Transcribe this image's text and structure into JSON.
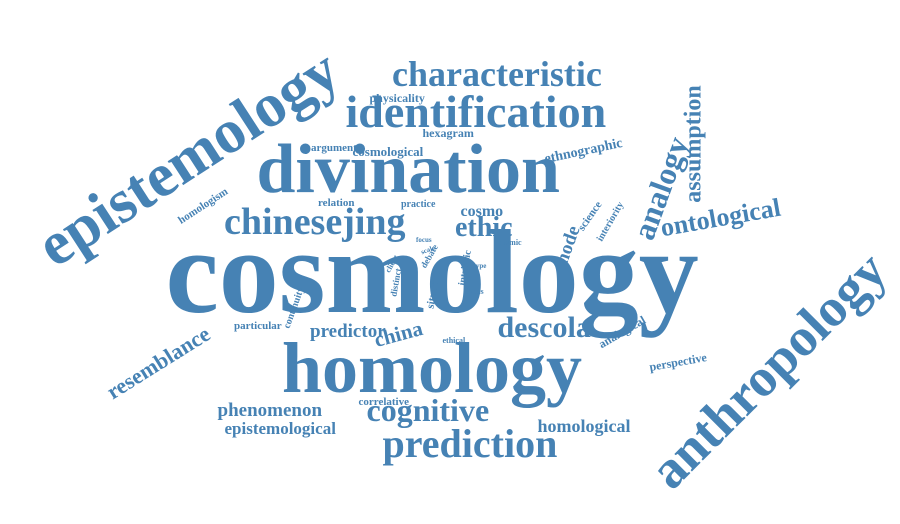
{
  "accent_color": "#4682b4",
  "words": [
    {
      "text": "cosmology",
      "weight": 1.0
    },
    {
      "text": "epistemology",
      "weight": 0.5
    },
    {
      "text": "anthropology",
      "weight": 0.46
    },
    {
      "text": "divination",
      "weight": 0.56
    },
    {
      "text": "homology",
      "weight": 0.58
    },
    {
      "text": "identification",
      "weight": 0.38
    },
    {
      "text": "characteristic",
      "weight": 0.28
    },
    {
      "text": "chinesejing",
      "weight": 0.3
    },
    {
      "text": "prediction",
      "weight": 0.3
    },
    {
      "text": "cognitive",
      "weight": 0.24
    },
    {
      "text": "analogy",
      "weight": 0.22
    },
    {
      "text": "assumption",
      "weight": 0.2
    },
    {
      "text": "ontological",
      "weight": 0.18
    },
    {
      "text": "descola",
      "weight": 0.2
    },
    {
      "text": "resemblance",
      "weight": 0.16
    },
    {
      "text": "ethic",
      "weight": 0.17
    },
    {
      "text": "mode",
      "weight": 0.12
    },
    {
      "text": "china",
      "weight": 0.14
    },
    {
      "text": "predictor",
      "weight": 0.13
    },
    {
      "text": "phenomenon",
      "weight": 0.13
    },
    {
      "text": "epistemological",
      "weight": 0.12
    },
    {
      "text": "homological",
      "weight": 0.12
    },
    {
      "text": "ethnographic",
      "weight": 0.09
    },
    {
      "text": "cosmo",
      "weight": 0.09
    },
    {
      "text": "perspective",
      "weight": 0.08
    },
    {
      "text": "analogical",
      "weight": 0.08
    },
    {
      "text": "cosmological",
      "weight": 0.08
    },
    {
      "text": "physicality",
      "weight": 0.07
    },
    {
      "text": "hexagram",
      "weight": 0.07
    },
    {
      "text": "argument",
      "weight": 0.07
    },
    {
      "text": "relation",
      "weight": 0.07
    },
    {
      "text": "practice",
      "weight": 0.06
    },
    {
      "text": "homologism",
      "weight": 0.06
    },
    {
      "text": "science",
      "weight": 0.06
    },
    {
      "text": "interiority",
      "weight": 0.06
    },
    {
      "text": "particular",
      "weight": 0.07
    },
    {
      "text": "continuity",
      "weight": 0.06
    },
    {
      "text": "correlative",
      "weight": 0.06
    },
    {
      "text": "situation",
      "weight": 0.06
    },
    {
      "text": "debate",
      "weight": 0.05
    },
    {
      "text": "intrinsic",
      "weight": 0.05
    },
    {
      "text": "distinct",
      "weight": 0.05
    },
    {
      "text": "thesis",
      "weight": 0.04
    },
    {
      "text": "ethical",
      "weight": 0.04
    },
    {
      "text": "client",
      "weight": 0.04
    },
    {
      "text": "focus",
      "weight": 0.04
    },
    {
      "text": "scale",
      "weight": 0.04
    },
    {
      "text": "cosmic",
      "weight": 0.04
    },
    {
      "text": "type",
      "weight": 0.04
    }
  ]
}
